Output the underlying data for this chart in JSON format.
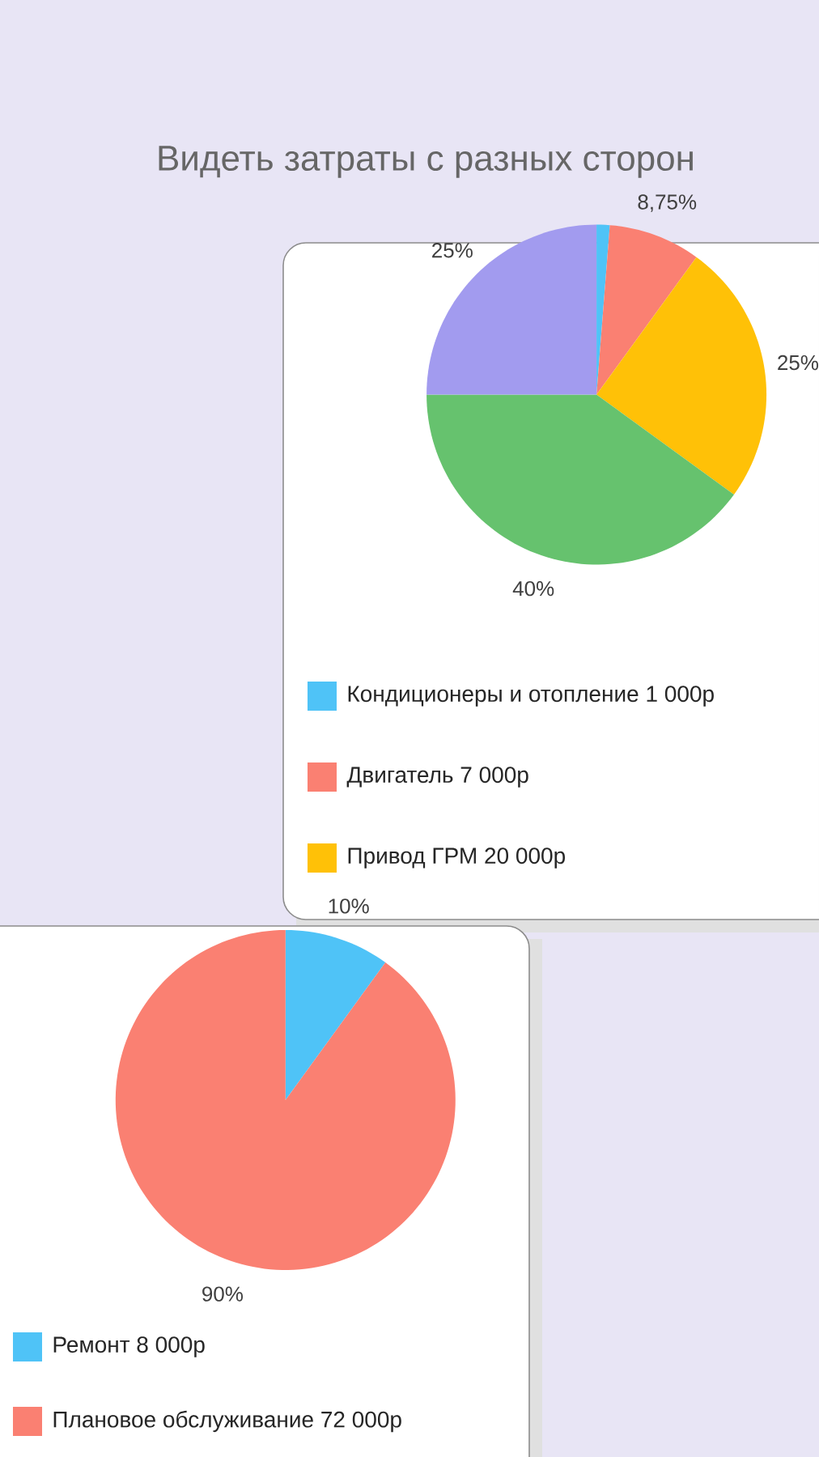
{
  "chart_data": [
    {
      "type": "pie",
      "title": "Видеть затраты с разных сторон",
      "categories": [
        "Кондиционеры и отопление 1 000р",
        "Двигатель 7 000р",
        "Привод ГРМ 20 000р",
        null,
        null
      ],
      "values": [
        1.25,
        8.75,
        25,
        40,
        25
      ],
      "colors": [
        "#4fc3f7",
        "#fa8072",
        "#ffc107",
        "#66c26e",
        "#a29bef"
      ],
      "value_labels": [
        null,
        "8,75%",
        "25%",
        "40%",
        "25%"
      ],
      "legend": "bottom"
    },
    {
      "type": "pie",
      "categories": [
        "Ремонт 8 000р",
        "Плановое обслуживание 72 000р"
      ],
      "values": [
        10,
        90
      ],
      "colors": [
        "#4fc3f7",
        "#fa8072"
      ],
      "value_labels": [
        "10%",
        "90%"
      ],
      "legend": "bottom"
    }
  ]
}
